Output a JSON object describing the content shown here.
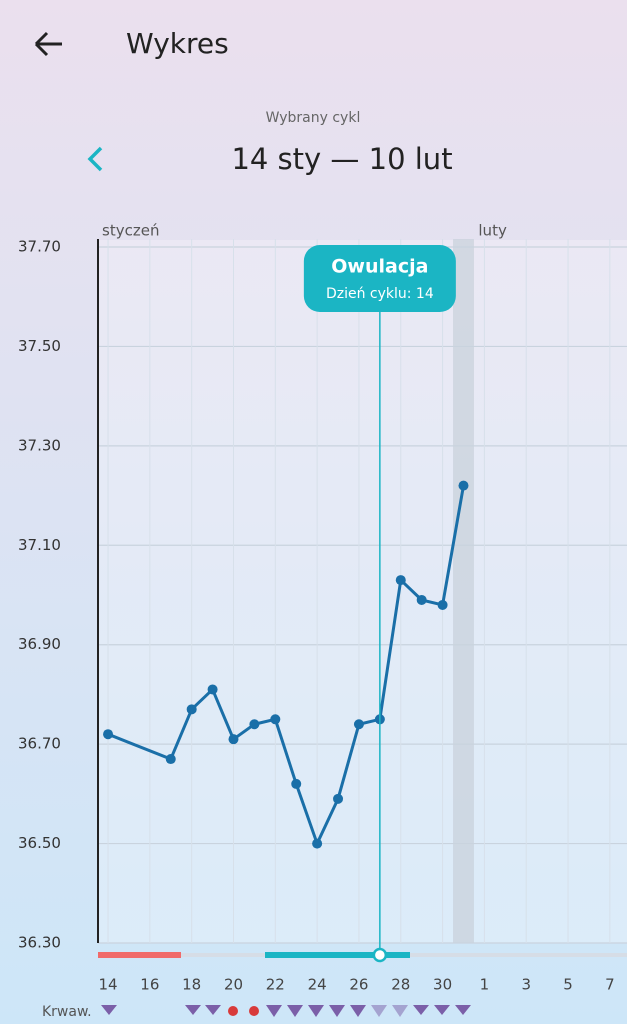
{
  "header": {
    "title": "Wykres"
  },
  "cycle": {
    "label": "Wybrany cykl",
    "range": "14 sty — 10 lut"
  },
  "chart_data": {
    "type": "line",
    "x": [
      1,
      4,
      5,
      6,
      7,
      8,
      9,
      10,
      11,
      12,
      13,
      14,
      15,
      16,
      17,
      18
    ],
    "series": [
      {
        "color": "#1a6fa8",
        "values": [
          36.72,
          36.67,
          36.77,
          36.81,
          36.71,
          36.74,
          36.75,
          36.62,
          36.5,
          36.59,
          36.74,
          36.75,
          37.03,
          36.99,
          36.98,
          37.22
        ]
      }
    ],
    "xlim": [
      0.52,
      25.82
    ],
    "xticks": [
      {
        "value": 1,
        "label": "14"
      },
      {
        "value": 3,
        "label": "16"
      },
      {
        "value": 5,
        "label": "18"
      },
      {
        "value": 7,
        "label": "20"
      },
      {
        "value": 9,
        "label": "22"
      },
      {
        "value": 11,
        "label": "24"
      },
      {
        "value": 13,
        "label": "26"
      },
      {
        "value": 15,
        "label": "28"
      },
      {
        "value": 17,
        "label": "30"
      },
      {
        "value": 19,
        "label": "1"
      },
      {
        "value": 21,
        "label": "3"
      },
      {
        "value": 23,
        "label": "5"
      },
      {
        "value": 25,
        "label": "7"
      }
    ],
    "ylim": [
      36.3,
      37.7
    ],
    "yticks": [
      {
        "value": 36.3,
        "label": "36.30"
      },
      {
        "value": 36.5,
        "label": "36.50"
      },
      {
        "value": 36.7,
        "label": "36.70"
      },
      {
        "value": 36.9,
        "label": "36.90"
      },
      {
        "value": 37.1,
        "label": "37.10"
      },
      {
        "value": 37.3,
        "label": "37.30"
      },
      {
        "value": 37.5,
        "label": "37.50"
      },
      {
        "value": 37.7,
        "label": "37.70"
      }
    ],
    "grid": true,
    "months": [
      {
        "label": "styczeń",
        "x": 1
      },
      {
        "label": "luty",
        "x": 19
      }
    ],
    "highlight_x": 18,
    "annotation": {
      "title": "Owulacja",
      "text": "Dzień cyklu: 14",
      "x": 14
    }
  },
  "footer": {
    "label": "Krwaw."
  }
}
